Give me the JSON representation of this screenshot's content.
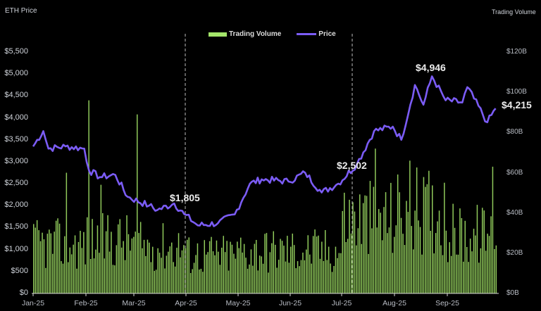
{
  "axes": {
    "left_title": "ETH Price",
    "right_title": "Trading Volume",
    "left_ticks": [
      "$5,500",
      "$5,000",
      "$4,500",
      "$4,000",
      "$3,500",
      "$3,000",
      "$2,500",
      "$2,000",
      "$1,500",
      "$1,000",
      "$500",
      "$0"
    ],
    "right_ticks": [
      "$120B",
      "$100B",
      "$80B",
      "$60B",
      "$40B",
      "$20B",
      "$0B"
    ],
    "x_ticks": [
      "Jan-25",
      "Feb-25",
      "Mar-25",
      "Apr-25",
      "May-25",
      "Jun-25",
      "Jul-25",
      "Aug-25",
      "Sep-25"
    ]
  },
  "legend": {
    "volume_label": "Trading Volume",
    "price_label": "Price"
  },
  "annotations": {
    "apr": "$1,805",
    "jul": "$2,502",
    "peak": "$4,946",
    "last": "$4,215"
  },
  "colors": {
    "volume": "#a4e56a",
    "price": "#7b5cf5",
    "background": "#000000"
  },
  "chart_data": {
    "type": "bar+line",
    "title": "",
    "xlabel": "",
    "ylabel_left": "ETH Price",
    "ylabel_right": "Trading Volume",
    "ylim_left": [
      0,
      5500
    ],
    "ylim_right": [
      0,
      120
    ],
    "grid": false,
    "legend_position": "top-center",
    "categories": [
      "Jan-25",
      "Feb-25",
      "Mar-25",
      "Apr-25",
      "May-25",
      "Jun-25",
      "Jul-25",
      "Aug-25",
      "Sep-25"
    ],
    "reference_lines": [
      "Apr-25 (start)",
      "Jul-25 (start)"
    ],
    "series": [
      {
        "name": "Price",
        "axis": "left",
        "type": "line",
        "monthly_points": [
          {
            "x": "Jan-01",
            "y": 3350
          },
          {
            "x": "Jan-07",
            "y": 3700
          },
          {
            "x": "Jan-10",
            "y": 3300
          },
          {
            "x": "Jan-20",
            "y": 3350
          },
          {
            "x": "Jan-31",
            "y": 3300
          },
          {
            "x": "Feb-03",
            "y": 2800
          },
          {
            "x": "Feb-10",
            "y": 2650
          },
          {
            "x": "Feb-20",
            "y": 2700
          },
          {
            "x": "Feb-28",
            "y": 2200
          },
          {
            "x": "Mar-10",
            "y": 2000
          },
          {
            "x": "Mar-15",
            "y": 1900
          },
          {
            "x": "Mar-25",
            "y": 2050
          },
          {
            "x": "Mar-31",
            "y": 1805
          },
          {
            "x": "Apr-08",
            "y": 1550
          },
          {
            "x": "Apr-20",
            "y": 1600
          },
          {
            "x": "Apr-30",
            "y": 1800
          },
          {
            "x": "May-08",
            "y": 2500
          },
          {
            "x": "May-15",
            "y": 2600
          },
          {
            "x": "May-31",
            "y": 2550
          },
          {
            "x": "Jun-10",
            "y": 2750
          },
          {
            "x": "Jun-20",
            "y": 2300
          },
          {
            "x": "Jun-30",
            "y": 2502
          },
          {
            "x": "Jul-10",
            "y": 2950
          },
          {
            "x": "Jul-20",
            "y": 3700
          },
          {
            "x": "Jul-31",
            "y": 3800
          },
          {
            "x": "Aug-05",
            "y": 3500
          },
          {
            "x": "Aug-13",
            "y": 4750
          },
          {
            "x": "Aug-18",
            "y": 4300
          },
          {
            "x": "Aug-23",
            "y": 4946
          },
          {
            "x": "Aug-31",
            "y": 4400
          },
          {
            "x": "Sep-10",
            "y": 4350
          },
          {
            "x": "Sep-13",
            "y": 4700
          },
          {
            "x": "Sep-25",
            "y": 3900
          },
          {
            "x": "Sep-30",
            "y": 4215
          }
        ]
      },
      {
        "name": "Trading Volume",
        "axis": "right",
        "type": "bar",
        "unit": "$B",
        "monthly_avg_approx": [
          25,
          27,
          24,
          20,
          22,
          22,
          38,
          42,
          30
        ],
        "notable_peaks": [
          {
            "x": "Feb-03",
            "y": 96
          },
          {
            "x": "Mar-03",
            "y": 89
          },
          {
            "x": "Jan-20",
            "y": 60
          },
          {
            "x": "Feb-10",
            "y": 54
          },
          {
            "x": "Jul-20",
            "y": 72
          },
          {
            "x": "Aug-10",
            "y": 66
          },
          {
            "x": "Sep-28",
            "y": 63
          }
        ]
      }
    ]
  }
}
